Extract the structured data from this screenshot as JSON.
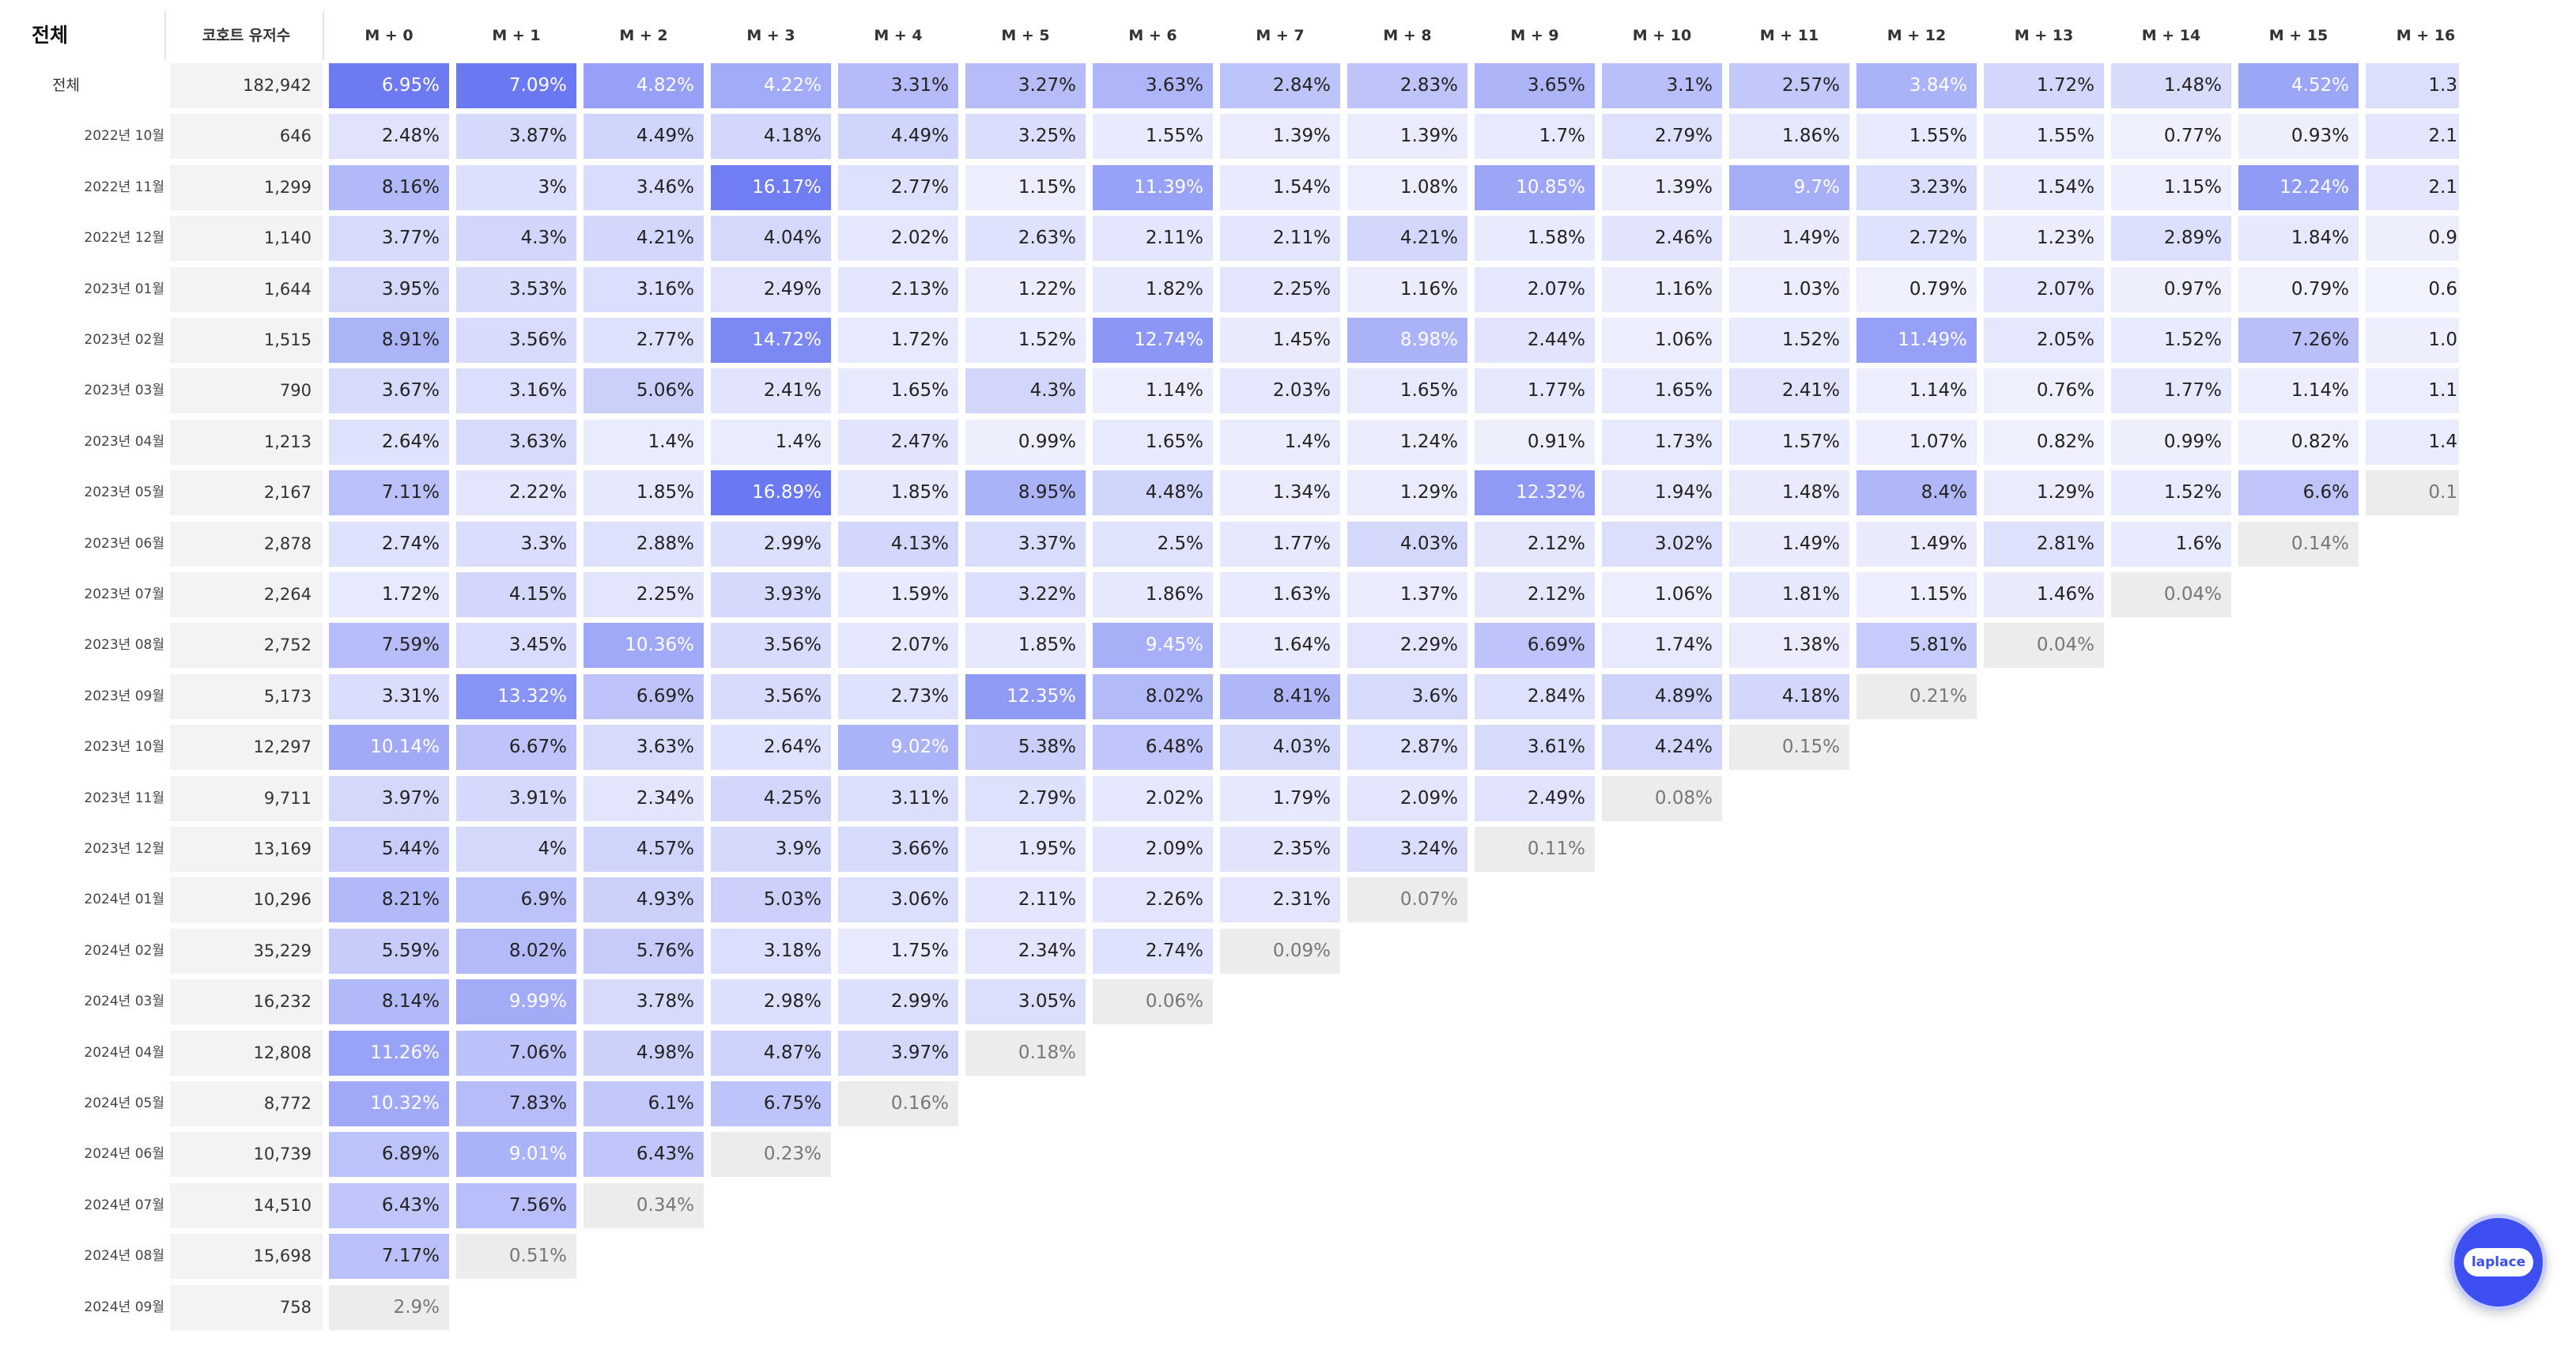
{
  "header": {
    "corner": "전체",
    "count": "코호트 유저수",
    "columns": [
      "M + 0",
      "M + 1",
      "M + 2",
      "M + 3",
      "M + 4",
      "M + 5",
      "M + 6",
      "M + 7",
      "M + 8",
      "M + 9",
      "M + 10",
      "M + 11",
      "M + 12",
      "M + 13",
      "M + 14",
      "M + 15",
      "M + 16"
    ]
  },
  "settings": {
    "low_color": "#f5f6fe",
    "high_color": "#6a78f2",
    "partial_color": "#ececec",
    "summary_row_own_scale": true
  },
  "rows": [
    {
      "label": "전체",
      "count": "182,942",
      "partial_last": false,
      "cells": [
        "6.95%",
        "7.09%",
        "4.82%",
        "4.22%",
        "3.31%",
        "3.27%",
        "3.63%",
        "2.84%",
        "2.83%",
        "3.65%",
        "3.1%",
        "2.57%",
        "3.84%",
        "1.72%",
        "1.48%",
        "4.52%",
        "1.3"
      ]
    },
    {
      "label": "2022년 10월",
      "count": "646",
      "partial_last": false,
      "cells": [
        "2.48%",
        "3.87%",
        "4.49%",
        "4.18%",
        "4.49%",
        "3.25%",
        "1.55%",
        "1.39%",
        "1.39%",
        "1.7%",
        "2.79%",
        "1.86%",
        "1.55%",
        "1.55%",
        "0.77%",
        "0.93%",
        "2.1"
      ]
    },
    {
      "label": "2022년 11월",
      "count": "1,299",
      "partial_last": false,
      "cells": [
        "8.16%",
        "3%",
        "3.46%",
        "16.17%",
        "2.77%",
        "1.15%",
        "11.39%",
        "1.54%",
        "1.08%",
        "10.85%",
        "1.39%",
        "9.7%",
        "3.23%",
        "1.54%",
        "1.15%",
        "12.24%",
        "2.1"
      ]
    },
    {
      "label": "2022년 12월",
      "count": "1,140",
      "partial_last": false,
      "cells": [
        "3.77%",
        "4.3%",
        "4.21%",
        "4.04%",
        "2.02%",
        "2.63%",
        "2.11%",
        "2.11%",
        "4.21%",
        "1.58%",
        "2.46%",
        "1.49%",
        "2.72%",
        "1.23%",
        "2.89%",
        "1.84%",
        "0.9"
      ]
    },
    {
      "label": "2023년 01월",
      "count": "1,644",
      "partial_last": false,
      "cells": [
        "3.95%",
        "3.53%",
        "3.16%",
        "2.49%",
        "2.13%",
        "1.22%",
        "1.82%",
        "2.25%",
        "1.16%",
        "2.07%",
        "1.16%",
        "1.03%",
        "0.79%",
        "2.07%",
        "0.97%",
        "0.79%",
        "0.6"
      ]
    },
    {
      "label": "2023년 02월",
      "count": "1,515",
      "partial_last": false,
      "cells": [
        "8.91%",
        "3.56%",
        "2.77%",
        "14.72%",
        "1.72%",
        "1.52%",
        "12.74%",
        "1.45%",
        "8.98%",
        "2.44%",
        "1.06%",
        "1.52%",
        "11.49%",
        "2.05%",
        "1.52%",
        "7.26%",
        "1.0"
      ]
    },
    {
      "label": "2023년 03월",
      "count": "790",
      "partial_last": false,
      "cells": [
        "3.67%",
        "3.16%",
        "5.06%",
        "2.41%",
        "1.65%",
        "4.3%",
        "1.14%",
        "2.03%",
        "1.65%",
        "1.77%",
        "1.65%",
        "2.41%",
        "1.14%",
        "0.76%",
        "1.77%",
        "1.14%",
        "1.1"
      ]
    },
    {
      "label": "2023년 04월",
      "count": "1,213",
      "partial_last": false,
      "cells": [
        "2.64%",
        "3.63%",
        "1.4%",
        "1.4%",
        "2.47%",
        "0.99%",
        "1.65%",
        "1.4%",
        "1.24%",
        "0.91%",
        "1.73%",
        "1.57%",
        "1.07%",
        "0.82%",
        "0.99%",
        "0.82%",
        "1.4"
      ]
    },
    {
      "label": "2023년 05월",
      "count": "2,167",
      "partial_last": true,
      "cells": [
        "7.11%",
        "2.22%",
        "1.85%",
        "16.89%",
        "1.85%",
        "8.95%",
        "4.48%",
        "1.34%",
        "1.29%",
        "12.32%",
        "1.94%",
        "1.48%",
        "8.4%",
        "1.29%",
        "1.52%",
        "6.6%",
        "0.1"
      ]
    },
    {
      "label": "2023년 06월",
      "count": "2,878",
      "partial_last": true,
      "cells": [
        "2.74%",
        "3.3%",
        "2.88%",
        "2.99%",
        "4.13%",
        "3.37%",
        "2.5%",
        "1.77%",
        "4.03%",
        "2.12%",
        "3.02%",
        "1.49%",
        "1.49%",
        "2.81%",
        "1.6%",
        "0.14%"
      ]
    },
    {
      "label": "2023년 07월",
      "count": "2,264",
      "partial_last": true,
      "cells": [
        "1.72%",
        "4.15%",
        "2.25%",
        "3.93%",
        "1.59%",
        "3.22%",
        "1.86%",
        "1.63%",
        "1.37%",
        "2.12%",
        "1.06%",
        "1.81%",
        "1.15%",
        "1.46%",
        "0.04%"
      ]
    },
    {
      "label": "2023년 08월",
      "count": "2,752",
      "partial_last": true,
      "cells": [
        "7.59%",
        "3.45%",
        "10.36%",
        "3.56%",
        "2.07%",
        "1.85%",
        "9.45%",
        "1.64%",
        "2.29%",
        "6.69%",
        "1.74%",
        "1.38%",
        "5.81%",
        "0.04%"
      ]
    },
    {
      "label": "2023년 09월",
      "count": "5,173",
      "partial_last": true,
      "cells": [
        "3.31%",
        "13.32%",
        "6.69%",
        "3.56%",
        "2.73%",
        "12.35%",
        "8.02%",
        "8.41%",
        "3.6%",
        "2.84%",
        "4.89%",
        "4.18%",
        "0.21%"
      ]
    },
    {
      "label": "2023년 10월",
      "count": "12,297",
      "partial_last": true,
      "cells": [
        "10.14%",
        "6.67%",
        "3.63%",
        "2.64%",
        "9.02%",
        "5.38%",
        "6.48%",
        "4.03%",
        "2.87%",
        "3.61%",
        "4.24%",
        "0.15%"
      ]
    },
    {
      "label": "2023년 11월",
      "count": "9,711",
      "partial_last": true,
      "cells": [
        "3.97%",
        "3.91%",
        "2.34%",
        "4.25%",
        "3.11%",
        "2.79%",
        "2.02%",
        "1.79%",
        "2.09%",
        "2.49%",
        "0.08%"
      ]
    },
    {
      "label": "2023년 12월",
      "count": "13,169",
      "partial_last": true,
      "cells": [
        "5.44%",
        "4%",
        "4.57%",
        "3.9%",
        "3.66%",
        "1.95%",
        "2.09%",
        "2.35%",
        "3.24%",
        "0.11%"
      ]
    },
    {
      "label": "2024년 01월",
      "count": "10,296",
      "partial_last": true,
      "cells": [
        "8.21%",
        "6.9%",
        "4.93%",
        "5.03%",
        "3.06%",
        "2.11%",
        "2.26%",
        "2.31%",
        "0.07%"
      ]
    },
    {
      "label": "2024년 02월",
      "count": "35,229",
      "partial_last": true,
      "cells": [
        "5.59%",
        "8.02%",
        "5.76%",
        "3.18%",
        "1.75%",
        "2.34%",
        "2.74%",
        "0.09%"
      ]
    },
    {
      "label": "2024년 03월",
      "count": "16,232",
      "partial_last": true,
      "cells": [
        "8.14%",
        "9.99%",
        "3.78%",
        "2.98%",
        "2.99%",
        "3.05%",
        "0.06%"
      ]
    },
    {
      "label": "2024년 04월",
      "count": "12,808",
      "partial_last": true,
      "cells": [
        "11.26%",
        "7.06%",
        "4.98%",
        "4.87%",
        "3.97%",
        "0.18%"
      ]
    },
    {
      "label": "2024년 05월",
      "count": "8,772",
      "partial_last": true,
      "cells": [
        "10.32%",
        "7.83%",
        "6.1%",
        "6.75%",
        "0.16%"
      ]
    },
    {
      "label": "2024년 06월",
      "count": "10,739",
      "partial_last": true,
      "cells": [
        "6.89%",
        "9.01%",
        "6.43%",
        "0.23%"
      ]
    },
    {
      "label": "2024년 07월",
      "count": "14,510",
      "partial_last": true,
      "cells": [
        "6.43%",
        "7.56%",
        "0.34%"
      ]
    },
    {
      "label": "2024년 08월",
      "count": "15,698",
      "partial_last": true,
      "cells": [
        "7.17%",
        "0.51%"
      ]
    },
    {
      "label": "2024년 09월",
      "count": "758",
      "partial_last": true,
      "cells": [
        "2.9%"
      ]
    }
  ],
  "chat_button": "laplace"
}
